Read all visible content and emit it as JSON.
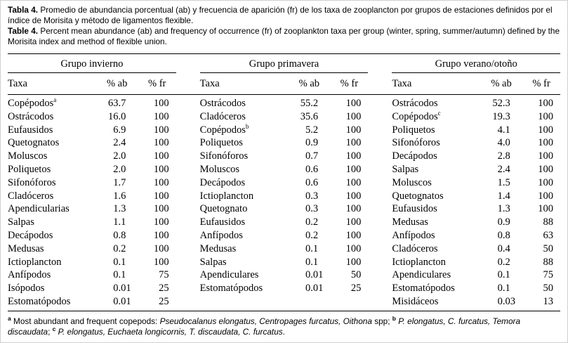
{
  "caption": {
    "es_label": "Tabla 4.",
    "es_text": "Promedio de abundancia porcentual (ab) y frecuencia de aparición (fr) de los taxa de zooplancton por grupos de estaciones definidos por el índice de Morisita y método de ligamentos flexible.",
    "en_label": "Table 4.",
    "en_text": "Percent mean abundance (ab) and frequency of occurrence (fr) of zooplankton taxa per group (winter, spring, summer/autumn) defined by the Morisita index and method of flexible union."
  },
  "table": {
    "col_headers": [
      "Taxa",
      "% ab",
      "% fr"
    ],
    "groups": [
      {
        "title": "Grupo invierno",
        "rows": [
          {
            "taxa": "Copépodos",
            "sup": "a",
            "ab": "63.7",
            "fr": "100"
          },
          {
            "taxa": "Ostrácodos",
            "ab": "16.0",
            "fr": "100"
          },
          {
            "taxa": "Eufausidos",
            "ab": "6.9",
            "fr": "100"
          },
          {
            "taxa": "Quetognatos",
            "ab": "2.4",
            "fr": "100"
          },
          {
            "taxa": "Moluscos",
            "ab": "2.0",
            "fr": "100"
          },
          {
            "taxa": "Poliquetos",
            "ab": "2.0",
            "fr": "100"
          },
          {
            "taxa": "Sifonóforos",
            "ab": "1.7",
            "fr": "100"
          },
          {
            "taxa": "Cladóceros",
            "ab": "1.6",
            "fr": "100"
          },
          {
            "taxa": "Apendicularias",
            "ab": "1.3",
            "fr": "100"
          },
          {
            "taxa": "Salpas",
            "ab": "1.1",
            "fr": "100"
          },
          {
            "taxa": "Decápodos",
            "ab": "0.8",
            "fr": "100"
          },
          {
            "taxa": "Medusas",
            "ab": "0.2",
            "fr": "100"
          },
          {
            "taxa": "Ictioplancton",
            "ab": "0.1",
            "fr": "100"
          },
          {
            "taxa": "Anfípodos",
            "ab": "0.1",
            "fr": "75"
          },
          {
            "taxa": "Isópodos",
            "ab": "0.01",
            "fr": "25"
          },
          {
            "taxa": "Estomatópodos",
            "ab": "0.01",
            "fr": "25"
          }
        ]
      },
      {
        "title": "Grupo primavera",
        "rows": [
          {
            "taxa": "Ostrácodos",
            "ab": "55.2",
            "fr": "100"
          },
          {
            "taxa": "Cladóceros",
            "ab": "35.6",
            "fr": "100"
          },
          {
            "taxa": "Copépodos",
            "sup": "b",
            "ab": "5.2",
            "fr": "100"
          },
          {
            "taxa": "Poliquetos",
            "ab": "0.9",
            "fr": "100"
          },
          {
            "taxa": "Sifonóforos",
            "ab": "0.7",
            "fr": "100"
          },
          {
            "taxa": "Moluscos",
            "ab": "0.6",
            "fr": "100"
          },
          {
            "taxa": "Decápodos",
            "ab": "0.6",
            "fr": "100"
          },
          {
            "taxa": "Ictioplancton",
            "ab": "0.3",
            "fr": "100"
          },
          {
            "taxa": "Quetognato",
            "ab": "0.3",
            "fr": "100"
          },
          {
            "taxa": "Eufausidos",
            "ab": "0.2",
            "fr": "100"
          },
          {
            "taxa": "Anfípodos",
            "ab": "0.2",
            "fr": "100"
          },
          {
            "taxa": "Medusas",
            "ab": "0.1",
            "fr": "100"
          },
          {
            "taxa": "Salpas",
            "ab": "0.1",
            "fr": "100"
          },
          {
            "taxa": "Apendiculares",
            "ab": "0.01",
            "fr": "50"
          },
          {
            "taxa": "Estomatópodos",
            "ab": "0.01",
            "fr": "25"
          }
        ]
      },
      {
        "title": "Grupo verano/otoño",
        "rows": [
          {
            "taxa": "Ostrácodos",
            "ab": "52.3",
            "fr": "100"
          },
          {
            "taxa": "Copépodos",
            "sup": "c",
            "ab": "19.3",
            "fr": "100"
          },
          {
            "taxa": "Poliquetos",
            "ab": "4.1",
            "fr": "100"
          },
          {
            "taxa": "Sifonóforos",
            "ab": "4.0",
            "fr": "100"
          },
          {
            "taxa": "Decápodos",
            "ab": "2.8",
            "fr": "100"
          },
          {
            "taxa": "Salpas",
            "ab": "2.4",
            "fr": "100"
          },
          {
            "taxa": "Moluscos",
            "ab": "1.5",
            "fr": "100"
          },
          {
            "taxa": "Quetognatos",
            "ab": "1.4",
            "fr": "100"
          },
          {
            "taxa": "Eufausidos",
            "ab": "1.3",
            "fr": "100"
          },
          {
            "taxa": "Medusas",
            "ab": "0.9",
            "fr": "88"
          },
          {
            "taxa": "Anfípodos",
            "ab": "0.8",
            "fr": "63"
          },
          {
            "taxa": "Cladóceros",
            "ab": "0.4",
            "fr": "50"
          },
          {
            "taxa": "Ictioplancton",
            "ab": "0.2",
            "fr": "88"
          },
          {
            "taxa": "Apendiculares",
            "ab": "0.1",
            "fr": "75"
          },
          {
            "taxa": "Estomatópodos",
            "ab": "0.1",
            "fr": "50"
          },
          {
            "taxa": "Misidáceos",
            "ab": "0.03",
            "fr": "13"
          }
        ]
      }
    ]
  },
  "footnote": {
    "segments": [
      {
        "text": "a",
        "style": "sup"
      },
      {
        "text": " Most abundant and frequent copepods: ",
        "style": "normal"
      },
      {
        "text": "Pseudocalanus elongatus, Centropages furcatus, Oithona",
        "style": "italic"
      },
      {
        "text": " spp; ",
        "style": "normal"
      },
      {
        "text": "b",
        "style": "sup"
      },
      {
        "text": " ",
        "style": "normal"
      },
      {
        "text": "P. elongatus, C. furcatus, Temora discaudata",
        "style": "italic"
      },
      {
        "text": "; ",
        "style": "normal"
      },
      {
        "text": "c",
        "style": "sup"
      },
      {
        "text": " ",
        "style": "normal"
      },
      {
        "text": "P. elongatus, Euchaeta longicornis, T. discaudata, C. furcatus",
        "style": "italic"
      },
      {
        "text": ".",
        "style": "normal"
      }
    ]
  }
}
